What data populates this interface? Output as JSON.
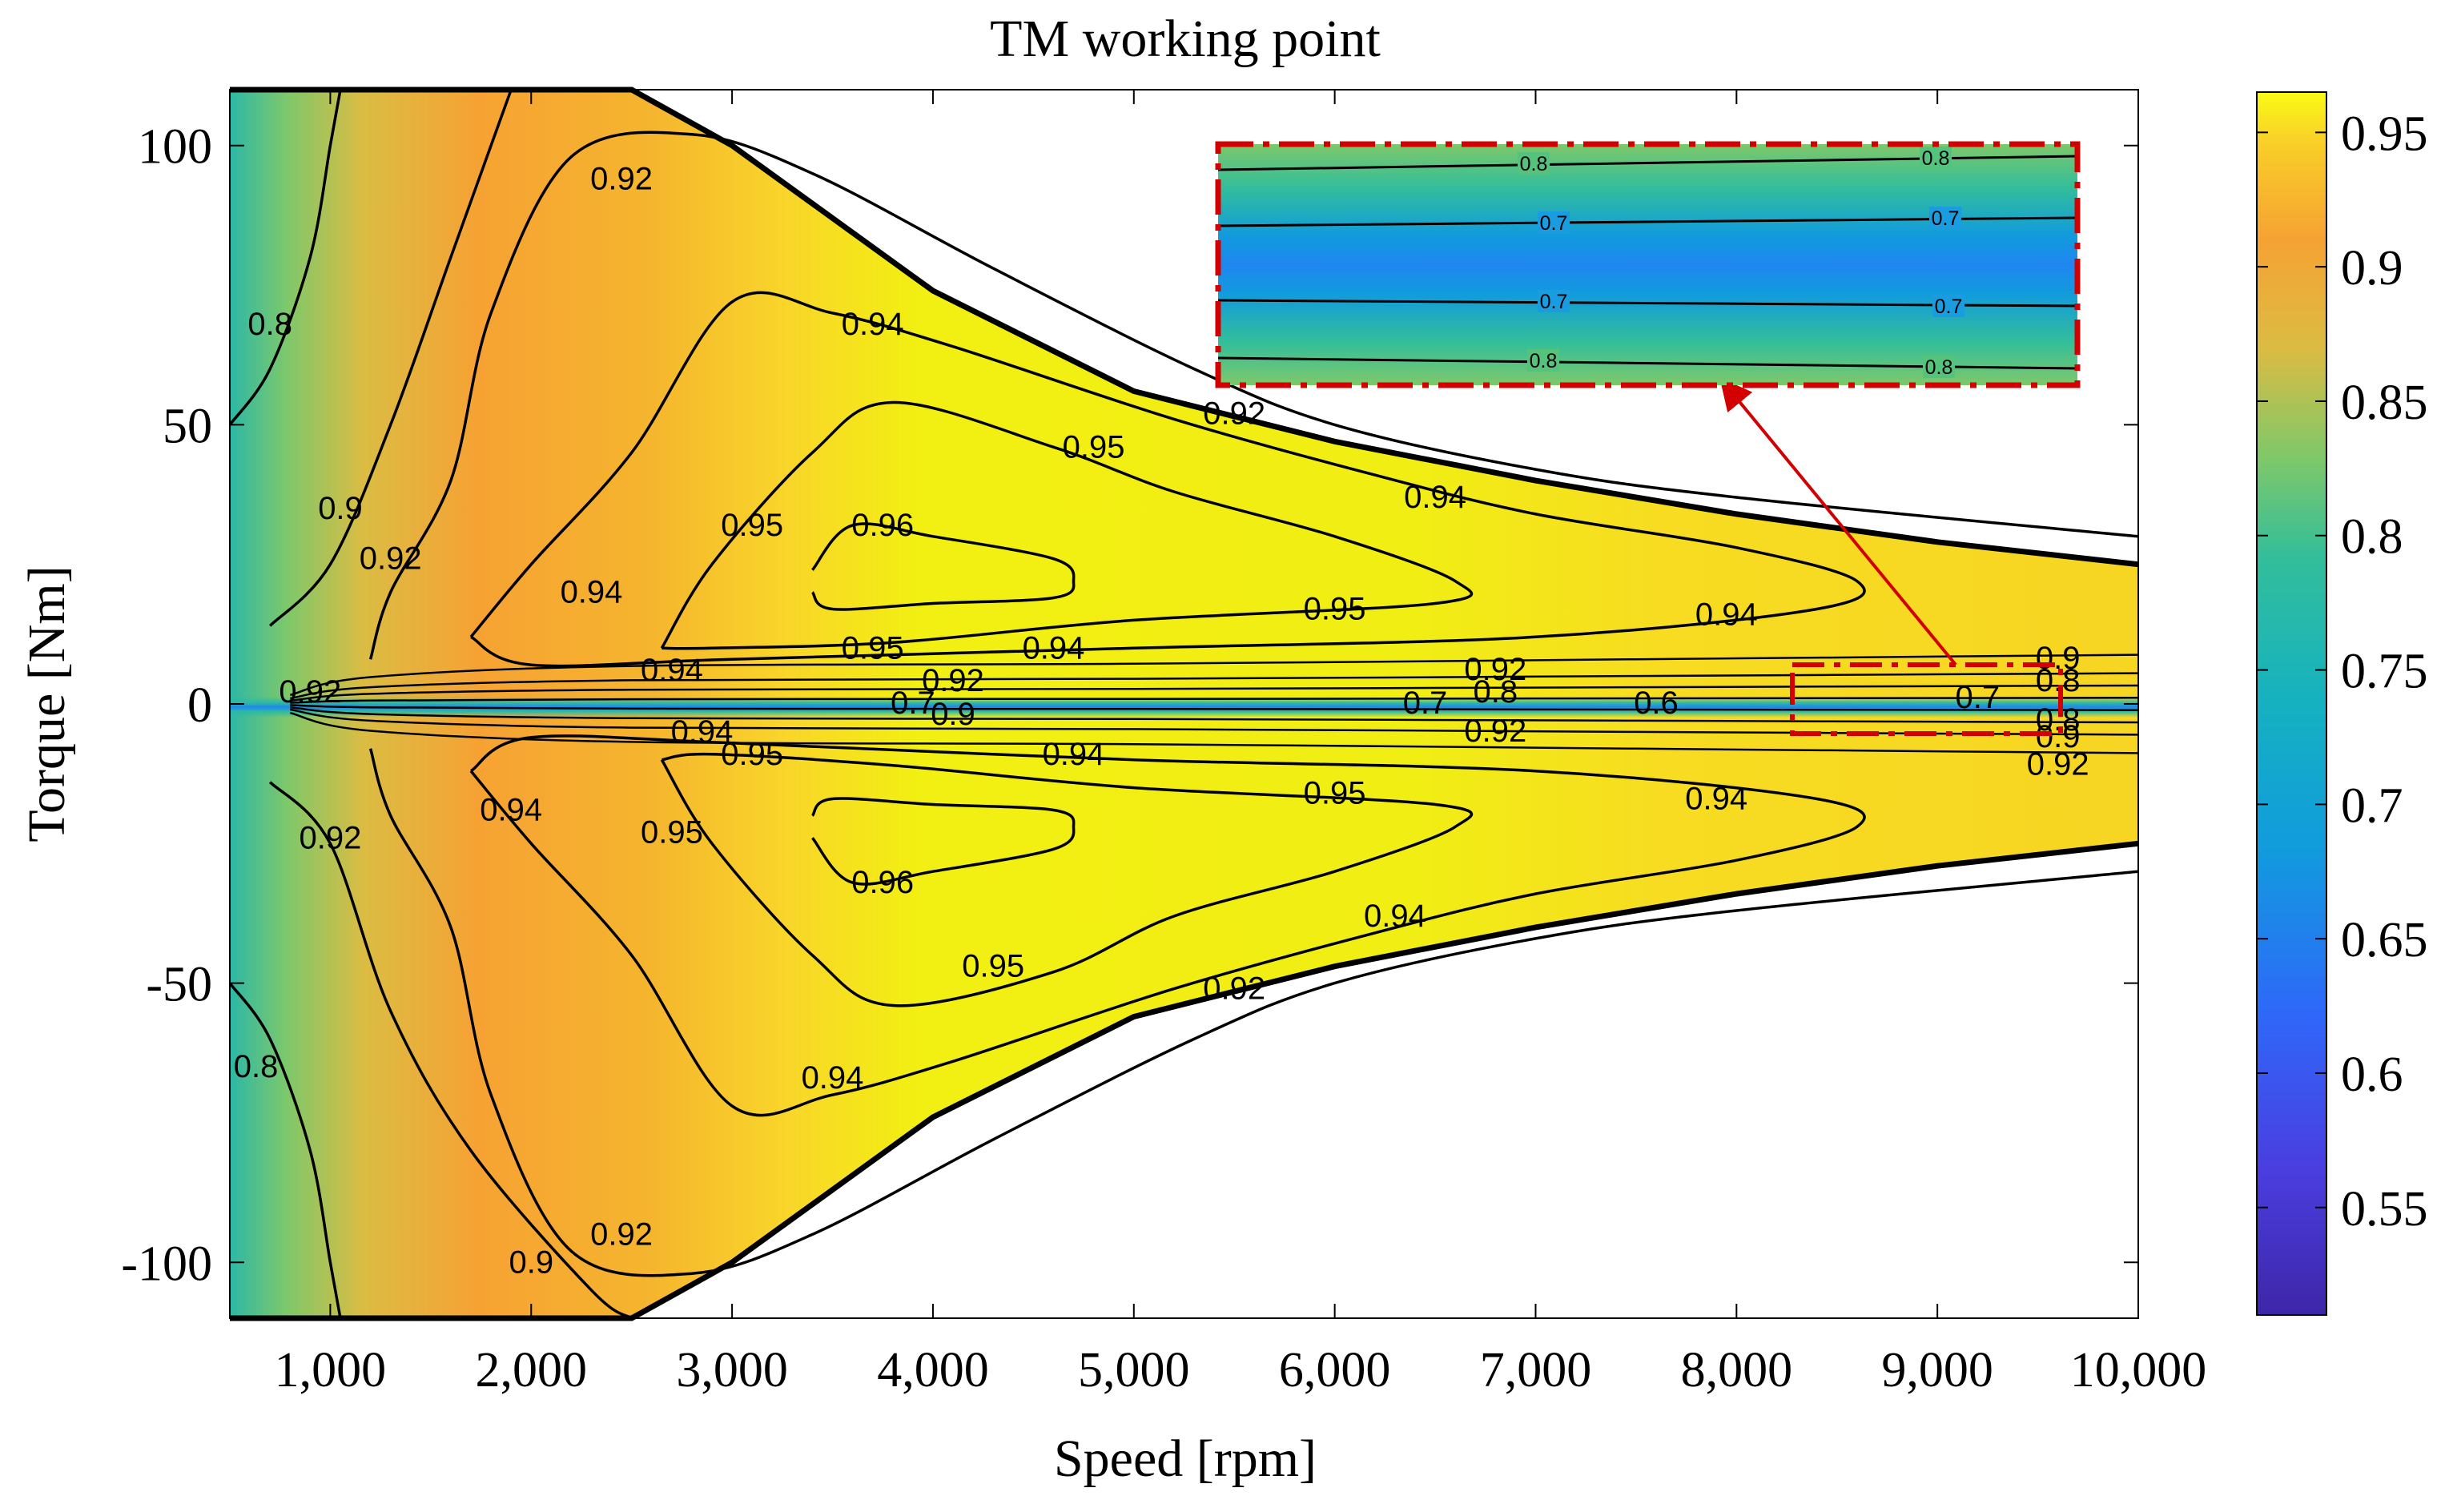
{
  "chart_data": {
    "type": "heatmap",
    "title": "TM working point",
    "xlabel": "Speed [rpm]",
    "ylabel": "Torque [Nm]",
    "xlim": [
      500,
      10000
    ],
    "ylim": [
      -110,
      110
    ],
    "x_ticks": [
      {
        "value": 1000,
        "label": "1,000"
      },
      {
        "value": 2000,
        "label": "2,000"
      },
      {
        "value": 3000,
        "label": "3,000"
      },
      {
        "value": 4000,
        "label": "4,000"
      },
      {
        "value": 5000,
        "label": "5,000"
      },
      {
        "value": 6000,
        "label": "6,000"
      },
      {
        "value": 7000,
        "label": "7,000"
      },
      {
        "value": 8000,
        "label": "8,000"
      },
      {
        "value": 9000,
        "label": "9,000"
      },
      {
        "value": 10000,
        "label": "10,000"
      }
    ],
    "y_ticks": [
      {
        "value": 100,
        "label": "100"
      },
      {
        "value": 50,
        "label": "50"
      },
      {
        "value": 0,
        "label": "0"
      },
      {
        "value": -50,
        "label": "-50"
      },
      {
        "value": -100,
        "label": "-100"
      }
    ],
    "colorbar": {
      "range": [
        0.51,
        0.965
      ],
      "ticks": [
        {
          "value": 0.95,
          "label": "0.95"
        },
        {
          "value": 0.9,
          "label": "0.9"
        },
        {
          "value": 0.85,
          "label": "0.85"
        },
        {
          "value": 0.8,
          "label": "0.8"
        },
        {
          "value": 0.75,
          "label": "0.75"
        },
        {
          "value": 0.7,
          "label": "0.7"
        },
        {
          "value": 0.65,
          "label": "0.65"
        },
        {
          "value": 0.6,
          "label": "0.6"
        },
        {
          "value": 0.55,
          "label": "0.55"
        }
      ],
      "colors": [
        "#3e26a8",
        "#2e69f9",
        "#119bdd",
        "#2cb8a6",
        "#7ec86a",
        "#dbbc43",
        "#f6a233",
        "#f9c935",
        "#f9fb15"
      ]
    },
    "max_torque_envelope": [
      [
        500,
        110
      ],
      [
        2500,
        110
      ],
      [
        3000,
        100
      ],
      [
        4000,
        74
      ],
      [
        5000,
        56
      ],
      [
        6000,
        47
      ],
      [
        7000,
        40
      ],
      [
        8000,
        34
      ],
      [
        9000,
        29
      ],
      [
        10000,
        25
      ]
    ],
    "contours": [
      {
        "level": 0.96,
        "points": [
          [
            3400,
            24
          ],
          [
            3600,
            32
          ],
          [
            4000,
            30
          ],
          [
            4600,
            26
          ],
          [
            4700,
            22
          ],
          [
            4600,
            19
          ],
          [
            4000,
            18
          ],
          [
            3500,
            17
          ],
          [
            3400,
            20
          ]
        ],
        "labels": [
          {
            "x": 3750,
            "y": 32,
            "text": "0.96"
          }
        ]
      },
      {
        "level": 0.96,
        "points": [
          [
            3400,
            -24
          ],
          [
            3600,
            -32
          ],
          [
            4000,
            -30
          ],
          [
            4600,
            -26
          ],
          [
            4700,
            -22
          ],
          [
            4600,
            -19
          ],
          [
            4000,
            -18
          ],
          [
            3500,
            -17
          ],
          [
            3400,
            -20
          ]
        ],
        "labels": [
          {
            "x": 3750,
            "y": -32,
            "text": "0.96"
          }
        ]
      },
      {
        "level": 0.95,
        "points": [
          [
            2650,
            10
          ],
          [
            2900,
            25
          ],
          [
            3400,
            45
          ],
          [
            3800,
            54
          ],
          [
            4600,
            46
          ],
          [
            5200,
            38
          ],
          [
            6000,
            30
          ],
          [
            6600,
            22
          ],
          [
            6500,
            18
          ],
          [
            5000,
            15
          ],
          [
            3800,
            11
          ],
          [
            2900,
            10
          ],
          [
            2650,
            10
          ]
        ],
        "labels": [
          {
            "x": 3100,
            "y": 32,
            "text": "0.95"
          },
          {
            "x": 4800,
            "y": 46,
            "text": "0.95"
          },
          {
            "x": 6000,
            "y": 17,
            "text": "0.95"
          },
          {
            "x": 3700,
            "y": 10,
            "text": "0.95"
          }
        ]
      },
      {
        "level": 0.95,
        "points": [
          [
            2650,
            -10
          ],
          [
            2900,
            -25
          ],
          [
            3400,
            -45
          ],
          [
            3800,
            -54
          ],
          [
            4600,
            -48
          ],
          [
            5200,
            -38
          ],
          [
            6000,
            -30
          ],
          [
            6600,
            -22
          ],
          [
            6500,
            -18
          ],
          [
            5000,
            -15
          ],
          [
            3800,
            -11
          ],
          [
            2900,
            -9
          ],
          [
            2650,
            -10
          ]
        ],
        "labels": [
          {
            "x": 2700,
            "y": -23,
            "text": "0.95"
          },
          {
            "x": 4300,
            "y": -47,
            "text": "0.95"
          },
          {
            "x": 6000,
            "y": -16,
            "text": "0.95"
          },
          {
            "x": 3100,
            "y": -9,
            "text": "0.95"
          }
        ]
      },
      {
        "level": 0.94,
        "points": [
          [
            1700,
            12
          ],
          [
            2000,
            25
          ],
          [
            2500,
            45
          ],
          [
            3000,
            72
          ],
          [
            3500,
            70
          ],
          [
            4100,
            64
          ],
          [
            5200,
            51
          ],
          [
            6200,
            41
          ],
          [
            7000,
            34
          ],
          [
            8000,
            28
          ],
          [
            8600,
            22
          ],
          [
            8400,
            17
          ],
          [
            7000,
            12
          ],
          [
            5000,
            10
          ],
          [
            3000,
            8
          ],
          [
            2000,
            7
          ],
          [
            1700,
            12
          ]
        ],
        "labels": [
          {
            "x": 2300,
            "y": 20,
            "text": "0.94"
          },
          {
            "x": 3700,
            "y": 68,
            "text": "0.94"
          },
          {
            "x": 6500,
            "y": 37,
            "text": "0.94"
          },
          {
            "x": 7950,
            "y": 16,
            "text": "0.94"
          },
          {
            "x": 4600,
            "y": 10,
            "text": "0.94"
          },
          {
            "x": 2700,
            "y": 6,
            "text": "0.94"
          }
        ]
      },
      {
        "level": 0.94,
        "points": [
          [
            1700,
            -12
          ],
          [
            2000,
            -25
          ],
          [
            2500,
            -45
          ],
          [
            3000,
            -72
          ],
          [
            3500,
            -70
          ],
          [
            4100,
            -64
          ],
          [
            5200,
            -51
          ],
          [
            6200,
            -41
          ],
          [
            7000,
            -34
          ],
          [
            8000,
            -28
          ],
          [
            8600,
            -22
          ],
          [
            8400,
            -17
          ],
          [
            7000,
            -12
          ],
          [
            5000,
            -10
          ],
          [
            3000,
            -7
          ],
          [
            2000,
            -6
          ],
          [
            1700,
            -12
          ]
        ],
        "labels": [
          {
            "x": 1900,
            "y": -19,
            "text": "0.94"
          },
          {
            "x": 3500,
            "y": -67,
            "text": "0.94"
          },
          {
            "x": 6300,
            "y": -38,
            "text": "0.94"
          },
          {
            "x": 7900,
            "y": -17,
            "text": "0.94"
          },
          {
            "x": 4700,
            "y": -9,
            "text": "0.94"
          },
          {
            "x": 2850,
            "y": -5,
            "text": "0.94"
          }
        ]
      },
      {
        "level": 0.92,
        "points": [
          [
            1200,
            8
          ],
          [
            1300,
            20
          ],
          [
            1600,
            40
          ],
          [
            1800,
            70
          ],
          [
            2200,
            98
          ],
          [
            2800,
            102
          ],
          [
            3400,
            95
          ],
          [
            4300,
            78
          ],
          [
            5300,
            60
          ],
          [
            6000,
            50
          ],
          [
            7000,
            42
          ],
          [
            8000,
            37
          ],
          [
            10000,
            30
          ]
        ],
        "labels": [
          {
            "x": 1300,
            "y": 26,
            "text": "0.92"
          },
          {
            "x": 2450,
            "y": 94,
            "text": "0.92"
          },
          {
            "x": 5500,
            "y": 52,
            "text": "0.92"
          }
        ]
      },
      {
        "level": 0.92,
        "points": [
          [
            1200,
            -8
          ],
          [
            1300,
            -20
          ],
          [
            1600,
            -40
          ],
          [
            1800,
            -70
          ],
          [
            2200,
            -98
          ],
          [
            2800,
            -102
          ],
          [
            3400,
            -95
          ],
          [
            4300,
            -78
          ],
          [
            5300,
            -60
          ],
          [
            6000,
            -50
          ],
          [
            7000,
            -42
          ],
          [
            8000,
            -37
          ],
          [
            10000,
            -30
          ]
        ],
        "labels": [
          {
            "x": 1000,
            "y": -24,
            "text": "0.92"
          },
          {
            "x": 2450,
            "y": -95,
            "text": "0.92"
          },
          {
            "x": 5500,
            "y": -51,
            "text": "0.92"
          }
        ]
      },
      {
        "level": 0.9,
        "points": [
          [
            700,
            14
          ],
          [
            1000,
            25
          ],
          [
            1300,
            50
          ],
          [
            1600,
            80
          ],
          [
            1900,
            110
          ]
        ],
        "labels": [
          {
            "x": 1050,
            "y": 35,
            "text": "0.9"
          }
        ]
      },
      {
        "level": 0.9,
        "points": [
          [
            700,
            -14
          ],
          [
            1000,
            -25
          ],
          [
            1300,
            -55
          ],
          [
            1700,
            -80
          ],
          [
            2300,
            -105
          ],
          [
            2500,
            -110
          ]
        ],
        "labels": [
          {
            "x": 2000,
            "y": -100,
            "text": "0.9"
          }
        ]
      },
      {
        "level": 0.8,
        "points": [
          [
            500,
            50
          ],
          [
            700,
            60
          ],
          [
            900,
            80
          ],
          [
            1000,
            100
          ],
          [
            1050,
            110
          ]
        ],
        "labels": [
          {
            "x": 700,
            "y": 68,
            "text": "0.8"
          }
        ]
      },
      {
        "level": 0.8,
        "points": [
          [
            500,
            -50
          ],
          [
            700,
            -60
          ],
          [
            900,
            -80
          ],
          [
            1000,
            -100
          ],
          [
            1050,
            -110
          ]
        ],
        "labels": [
          {
            "x": 630,
            "y": -65,
            "text": "0.8"
          }
        ]
      }
    ],
    "near_zero_labels": [
      {
        "x": 900,
        "y": 2,
        "text": "0.92"
      },
      {
        "x": 4100,
        "y": 4,
        "text": "0.92"
      },
      {
        "x": 3900,
        "y": 0,
        "text": "0.7"
      },
      {
        "x": 4100,
        "y": -2,
        "text": "0.9"
      },
      {
        "x": 6800,
        "y": 6,
        "text": "0.92"
      },
      {
        "x": 6800,
        "y": 2,
        "text": "0.8"
      },
      {
        "x": 6450,
        "y": 0,
        "text": "0.7"
      },
      {
        "x": 7600,
        "y": 0,
        "text": "0.6"
      },
      {
        "x": 6800,
        "y": -5,
        "text": "0.92"
      },
      {
        "x": 9600,
        "y": 8,
        "text": "0.9"
      },
      {
        "x": 9200,
        "y": 1,
        "text": "0.7"
      },
      {
        "x": 9600,
        "y": 4,
        "text": "0.8"
      },
      {
        "x": 9600,
        "y": -3,
        "text": "0.8"
      },
      {
        "x": 9600,
        "y": -6,
        "text": "0.9"
      },
      {
        "x": 9600,
        "y": -11,
        "text": "0.92"
      }
    ],
    "inset": {
      "labels": [
        {
          "row": "top",
          "left": "0.8",
          "right": "0.8"
        },
        {
          "row": "upper-mid",
          "left": "0.7",
          "right": "0.7"
        },
        {
          "row": "lower-mid",
          "left": "0.7",
          "right": "0.7"
        },
        {
          "row": "bottom",
          "left": "0.8",
          "right": "0.8"
        }
      ]
    }
  }
}
